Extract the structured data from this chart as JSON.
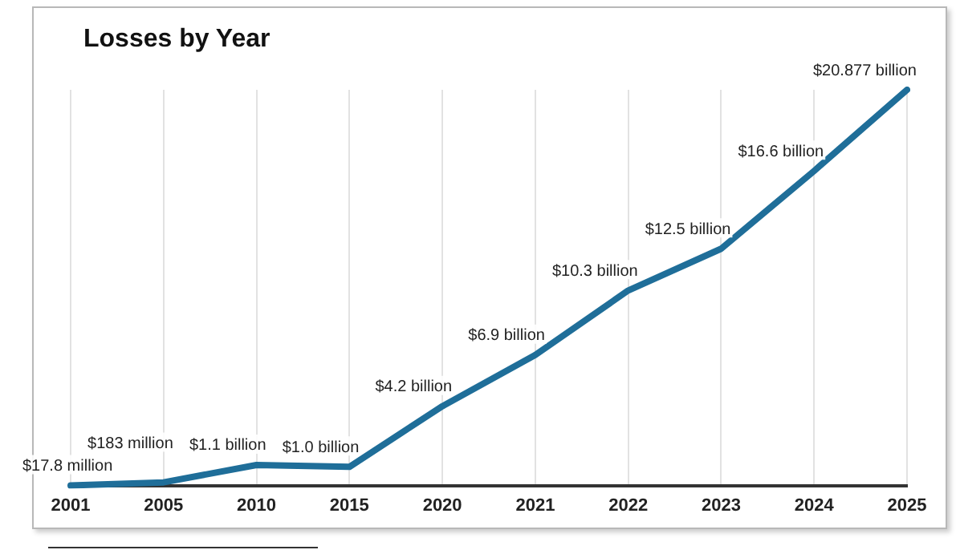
{
  "chart_data": {
    "type": "line",
    "title": "Losses by Year",
    "categories": [
      "2001",
      "2005",
      "2010",
      "2015",
      "2020",
      "2021",
      "2022",
      "2023",
      "2024",
      "2025"
    ],
    "series": [
      {
        "color": "#1f6e99",
        "values": [
          17800000,
          183000000,
          1100000000,
          1000000000,
          4200000000,
          6900000000,
          10300000000,
          12500000000,
          16600000000,
          20877000000
        ],
        "value_labels": [
          "$17.8 million",
          "$183 million",
          "$1.1 billion",
          "$1.0 billion",
          "$4.2 billion",
          "$6.9 billion",
          "$10.3 billion",
          "$12.5 billion",
          "$16.6 billion",
          "$20.877 billion"
        ]
      }
    ],
    "grid": "x",
    "legend": false,
    "marker": "none",
    "line_style": "solid"
  }
}
